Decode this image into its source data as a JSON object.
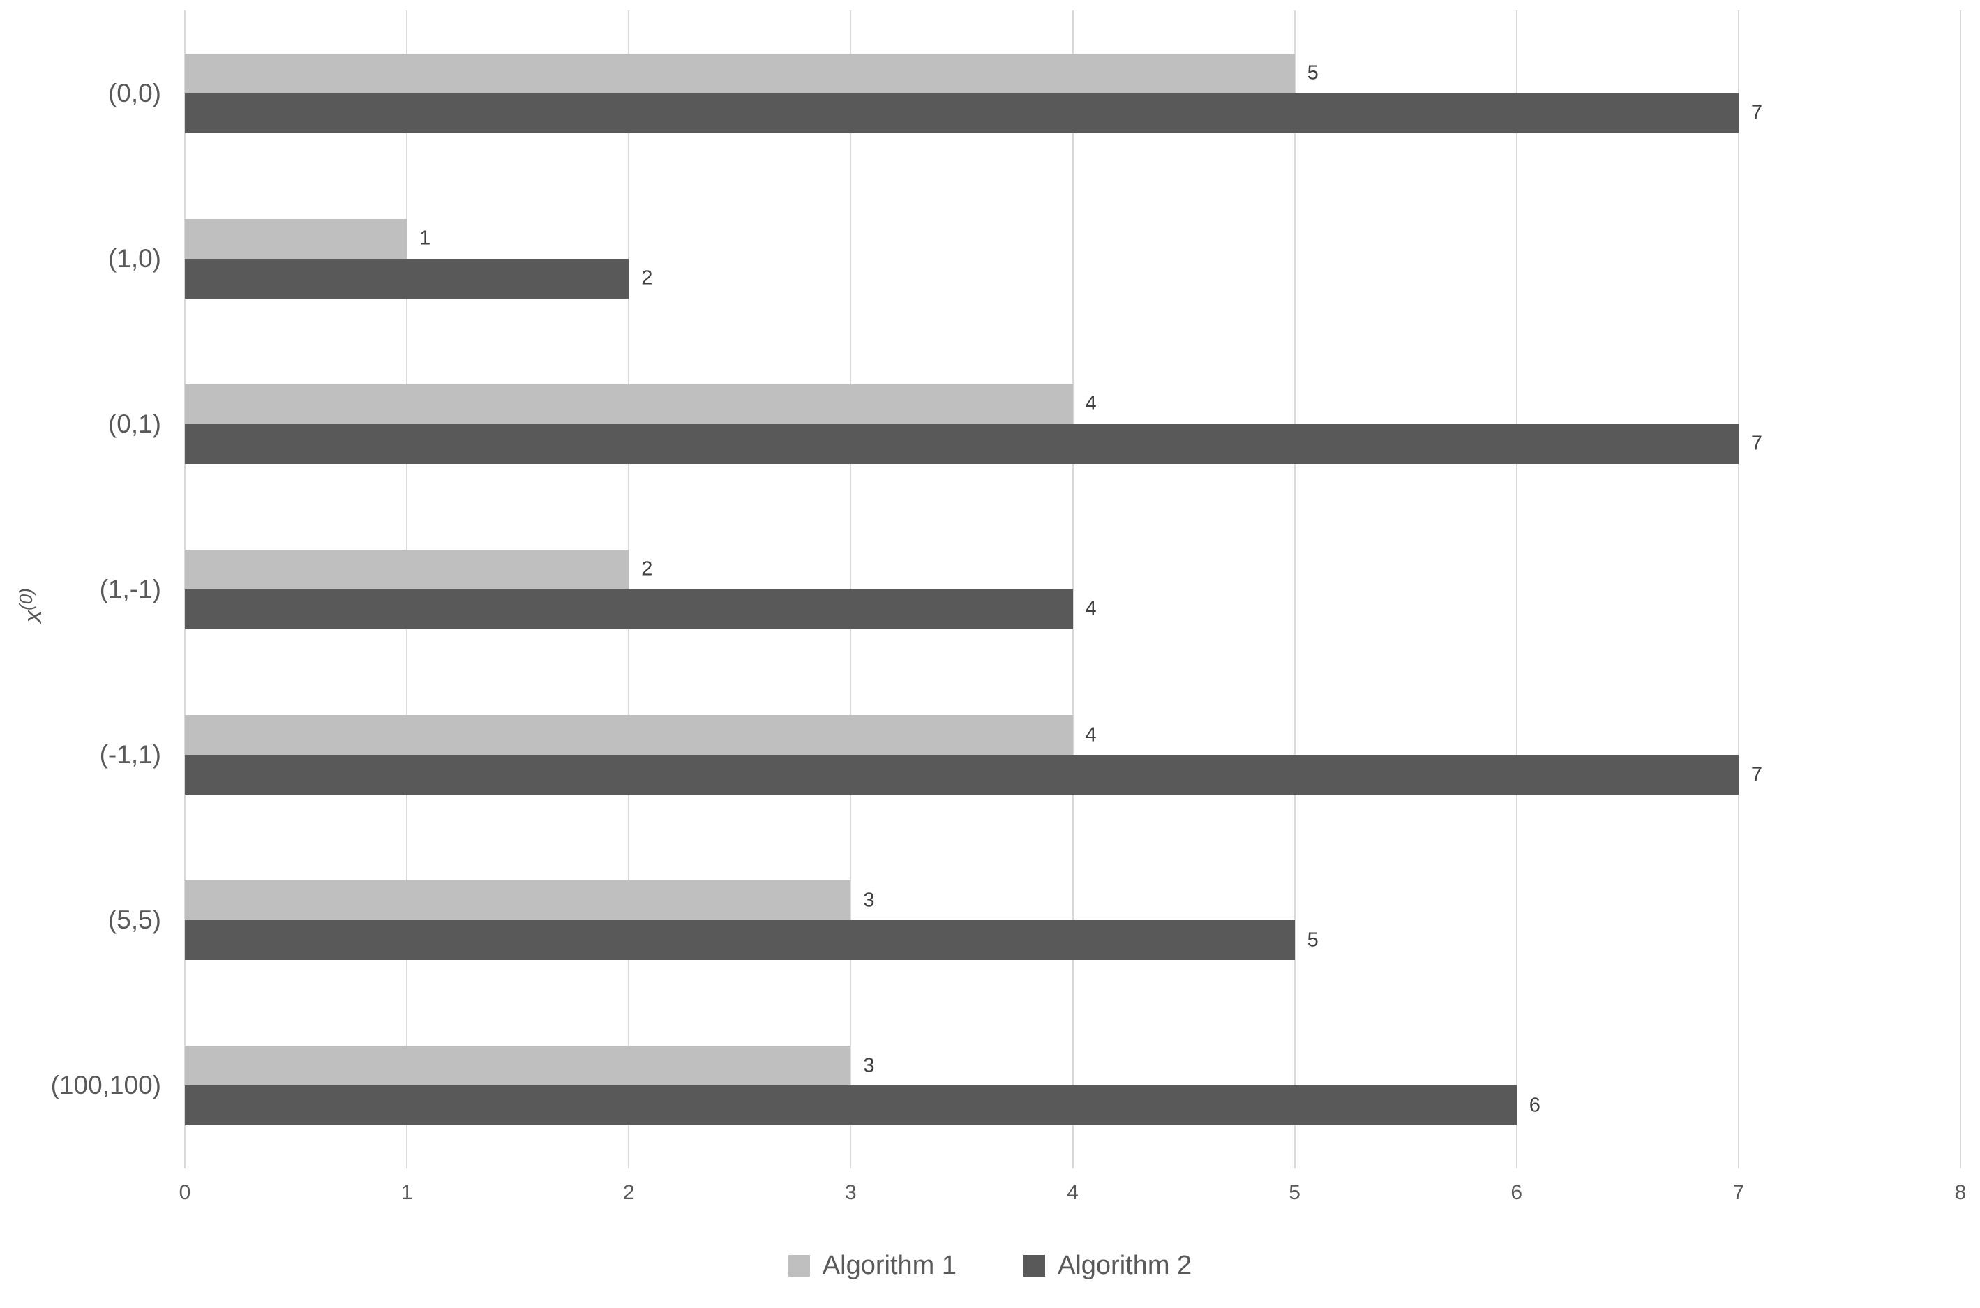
{
  "chart_data": {
    "type": "bar",
    "orientation": "horizontal",
    "title": "",
    "xlabel": "",
    "ylabel_base": "x",
    "ylabel_superscript": "(0)",
    "categories": [
      "(0,0)",
      "(1,0)",
      "(0,1)",
      "(1,-1)",
      "(-1,1)",
      "(5,5)",
      "(100,100)"
    ],
    "series": [
      {
        "name": "Algorithm 1",
        "color": "#bfbfbf",
        "values": [
          5,
          1,
          4,
          2,
          4,
          3,
          3
        ]
      },
      {
        "name": "Algorithm 2",
        "color": "#595959",
        "values": [
          7,
          2,
          7,
          4,
          7,
          5,
          6
        ]
      }
    ],
    "data_labels_visible": true,
    "xlim": [
      0,
      8
    ],
    "x_ticks": [
      "0",
      "1",
      "2",
      "3",
      "4",
      "5",
      "6",
      "7",
      "8"
    ],
    "grid": "vertical-only",
    "legend_position": "bottom-center",
    "colors": {
      "background": "#ffffff",
      "gridline": "#d9d9d9",
      "axis_text": "#595959",
      "data_label_text": "#404040"
    }
  }
}
